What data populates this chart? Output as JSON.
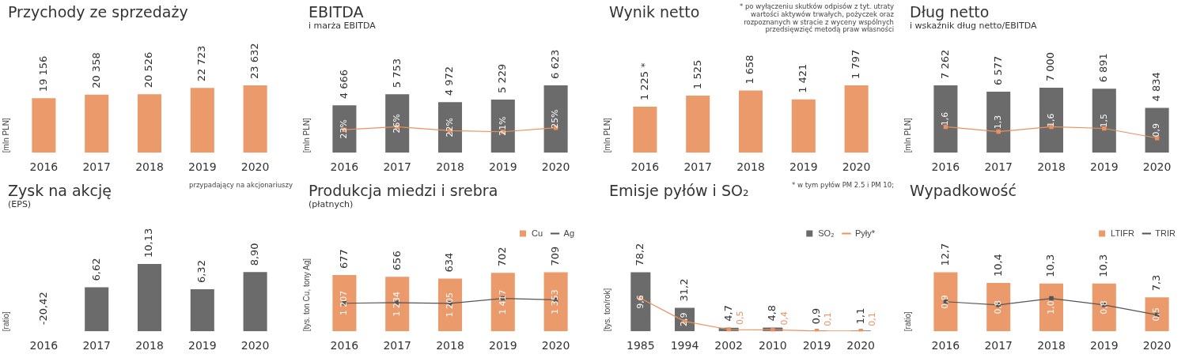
{
  "chart_data": [
    {
      "type": "bar",
      "title": "Przychody ze sprzedaży",
      "ylabel": "[mln PLN]",
      "tick_labels": "x",
      "legend": false,
      "categories": [
        "2016",
        "2017",
        "2018",
        "2019",
        "2020"
      ],
      "series": [
        {
          "color": "#eb9a6b",
          "values": [
            19156,
            20358,
            20526,
            22723,
            23632
          ],
          "value_labels": [
            "19 156",
            "20 358",
            "20 526",
            "22 723",
            "23 632"
          ]
        }
      ]
    },
    {
      "type": "bar",
      "title": "EBITDA",
      "subtitle": "i marża EBITDA",
      "ylabel": "[mln PLN]",
      "tick_labels": "x",
      "legend": false,
      "marker": "square",
      "categories": [
        "2016",
        "2017",
        "2018",
        "2019",
        "2020"
      ],
      "series": [
        {
          "color": "#6b6b6b",
          "values": [
            4666,
            5753,
            4972,
            5229,
            6623
          ],
          "value_labels": [
            "4 666",
            "5 753",
            "4 972",
            "5 229",
            "6 623"
          ]
        },
        {
          "type": "line",
          "axis": "y2",
          "color": "#ea915f",
          "values": [
            23,
            26,
            22,
            21,
            25
          ],
          "value_labels": [
            "23%",
            "26%",
            "22%",
            "21%",
            "25%"
          ]
        }
      ]
    },
    {
      "type": "bar",
      "title": "Wynik netto",
      "ylabel": "[mln PLN]",
      "tick_labels": "x",
      "legend": false,
      "annotations": [
        "* po wyłączeniu skutków odpisów z tyt. utraty wartości aktywów trwałych, pożyczek oraz rozpoznanych w stracie z wyceny wspólnych przedsięwzięć metodą praw własności"
      ],
      "categories": [
        "2016",
        "2017",
        "2018",
        "2019",
        "2020"
      ],
      "series": [
        {
          "color": "#eb9a6b",
          "values": [
            1225,
            1525,
            1658,
            1421,
            1797
          ],
          "value_labels": [
            "1 225 *",
            "1 525",
            "1 658",
            "1 421",
            "1 797"
          ]
        }
      ]
    },
    {
      "type": "bar",
      "title": "Dług netto",
      "subtitle": "i wskaźnik dług netto/EBITDA",
      "ylabel": "[mln PLN]",
      "tick_labels": "x",
      "legend": false,
      "marker": "square",
      "categories": [
        "2016",
        "2017",
        "2018",
        "2019",
        "2020"
      ],
      "series": [
        {
          "color": "#6b6b6b",
          "values": [
            7262,
            6577,
            7000,
            6891,
            4834
          ],
          "value_labels": [
            "7 262",
            "6 577",
            "7 000",
            "6 891",
            "4 834"
          ]
        },
        {
          "type": "line",
          "axis": "y2",
          "color": "#ea915f",
          "values": [
            1.6,
            1.3,
            1.6,
            1.5,
            0.9
          ],
          "value_labels": [
            "1,6",
            "1,3",
            "1,6",
            "1,5",
            "0,9"
          ]
        }
      ]
    },
    {
      "type": "bar",
      "title": "Zysk na akcję",
      "subtitle": "(EPS)",
      "ylabel": "[ratio]",
      "tick_labels": "x",
      "legend": false,
      "annotations": [
        "przypadający na akcjonariuszy"
      ],
      "categories": [
        "2016",
        "2017",
        "2018",
        "2019",
        "2020"
      ],
      "series": [
        {
          "color": "#6b6b6b",
          "values": [
            null,
            6.62,
            10.13,
            6.32,
            8.9
          ],
          "value_labels": [
            "-20,42",
            "6,62",
            "10,13",
            "6,32",
            "8,90"
          ]
        }
      ]
    },
    {
      "type": "bar",
      "title": "Produkcja miedzi i srebra",
      "subtitle": "(płatnych)",
      "ylabel": "[tys. ton Cu, tony Ag]",
      "tick_labels": "x",
      "legend": "top right",
      "marker": "square",
      "categories": [
        "2016",
        "2017",
        "2018",
        "2019",
        "2020"
      ],
      "series": [
        {
          "name": "Cu",
          "color": "#eb9a6b",
          "values": [
            677,
            656,
            634,
            702,
            709
          ],
          "value_labels": [
            "677",
            "656",
            "634",
            "702",
            "709"
          ]
        },
        {
          "name": "Ag",
          "type": "line",
          "axis": "y2",
          "color": "#555555",
          "values": [
            1207,
            1234,
            1205,
            1417,
            1353
          ],
          "value_labels": [
            "1 207",
            "1 234",
            "1 205",
            "1 417",
            "1 353"
          ]
        }
      ]
    },
    {
      "type": "bar",
      "title": "Emisje pyłów i SO₂",
      "ylabel": "[tys. ton/rok]",
      "tick_labels": "x",
      "legend": "top right",
      "marker": "square",
      "annotations": [
        "* w tym pyłów PM 2.5 i PM 10;"
      ],
      "categories": [
        "1985",
        "1994",
        "2002",
        "2010",
        "2019",
        "2020"
      ],
      "series": [
        {
          "name": "SO₂",
          "color": "#6b6b6b",
          "values": [
            78.2,
            31.2,
            4.7,
            4.8,
            0.9,
            1.1
          ],
          "value_labels": [
            "78,2",
            "31,2",
            "4,7",
            "4,8",
            "0,9",
            "1,1"
          ]
        },
        {
          "name": "Pyły*",
          "type": "line",
          "axis": "y2",
          "color": "#ea915f",
          "values": [
            9.6,
            2.9,
            0.5,
            0.4,
            0.1,
            0.1
          ],
          "value_labels": [
            "9,6",
            "2,9",
            "0,5",
            "0,4",
            "0,1",
            "0,1"
          ]
        }
      ]
    },
    {
      "type": "bar",
      "title": "Wypadkowość",
      "ylabel": "[ratio]",
      "tick_labels": "x",
      "legend": "top right",
      "marker": "square",
      "categories": [
        "2016",
        "2017",
        "2018",
        "2019",
        "2020"
      ],
      "series": [
        {
          "name": "LTIFR",
          "color": "#eb9a6b",
          "values": [
            12.7,
            10.4,
            10.3,
            10.3,
            7.3
          ],
          "value_labels": [
            "12,7",
            "10,4",
            "10,3",
            "10,3",
            "7,3"
          ]
        },
        {
          "name": "TRIR",
          "type": "line",
          "axis": "y2",
          "color": "#555555",
          "values": [
            0.9,
            0.8,
            1.0,
            0.8,
            0.5
          ],
          "value_labels": [
            "0,9",
            "0,8",
            "1,0",
            "0,8",
            "0,5"
          ]
        }
      ]
    }
  ]
}
